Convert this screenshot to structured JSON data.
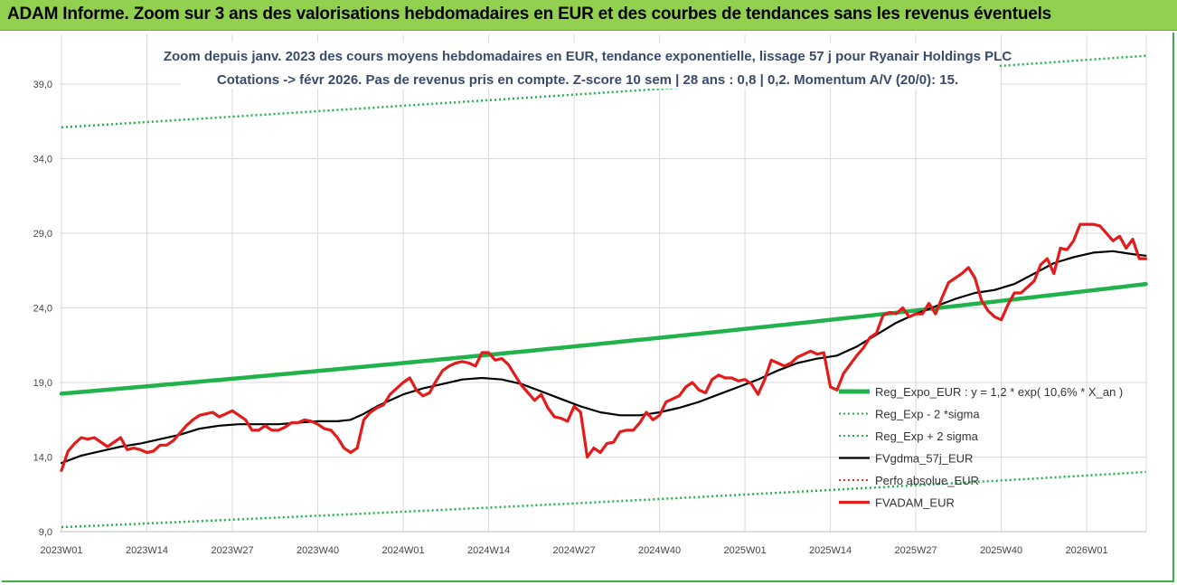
{
  "banner": {
    "title": "ADAM Informe. Zoom sur 3 ans des valorisations hebdomadaires en EUR et des courbes de tendances sans les revenus éventuels",
    "background": "#92d050"
  },
  "chart_data": {
    "type": "line",
    "title_line1": "Zoom depuis janv. 2023 des cours moyens hebdomadaires en EUR, tendance exponentielle, lissage 57 j pour Ryanair Holdings PLC",
    "title_line2": "Cotations -> févr 2026. Pas de revenus pris en compte. Z-score 10 sem | 28 ans : 0,8 | 0,2. Momentum A/V (20/0): 15.",
    "ylim": [
      9,
      40
    ],
    "y_ticks": [
      "9,0",
      "14,0",
      "19,0",
      "24,0",
      "29,0",
      "34,0",
      "39,0"
    ],
    "y_tick_values": [
      9,
      14,
      19,
      24,
      29,
      34,
      39
    ],
    "x_ticks": [
      "2023W01",
      "2023W14",
      "2023W27",
      "2023W40",
      "2024W01",
      "2024W14",
      "2024W27",
      "2024W40",
      "2025W01",
      "2025W14",
      "2025W27",
      "2025W40",
      "2026W01"
    ],
    "x_tick_index": [
      0,
      13,
      26,
      39,
      52,
      65,
      78,
      91,
      104,
      117,
      130,
      143,
      156
    ],
    "n_weeks": 165,
    "grid": true,
    "legend_position": "right",
    "series": [
      {
        "name": "Reg_Expo_EUR : y = 1,2 * exp( 10,6% *  X_an )",
        "color": "#22b24c",
        "style": "thick",
        "start": 18.25,
        "end": 25.6,
        "n": 165
      },
      {
        "name": "Reg_Exp - 2 *sigma",
        "color": "#22b24c",
        "style": "dotted",
        "start": 9.3,
        "end": 13.0,
        "n": 165
      },
      {
        "name": "Reg_Exp + 2 sigma",
        "color": "#22b24c",
        "style": "dotted",
        "start": 36.1,
        "end": 40.9,
        "n": 165
      },
      {
        "name": "FVgdma_57j_EUR",
        "color": "#000000",
        "style": "solid",
        "points": [
          [
            0,
            13.6
          ],
          [
            3,
            14.1
          ],
          [
            6,
            14.4
          ],
          [
            9,
            14.7
          ],
          [
            12,
            14.9
          ],
          [
            15,
            15.2
          ],
          [
            18,
            15.5
          ],
          [
            21,
            15.9
          ],
          [
            24,
            16.1
          ],
          [
            27,
            16.2
          ],
          [
            30,
            16.2
          ],
          [
            33,
            16.2
          ],
          [
            36,
            16.3
          ],
          [
            39,
            16.4
          ],
          [
            42,
            16.4
          ],
          [
            44,
            16.5
          ],
          [
            46,
            16.9
          ],
          [
            48,
            17.4
          ],
          [
            50,
            17.8
          ],
          [
            52,
            18.2
          ],
          [
            55,
            18.6
          ],
          [
            58,
            18.9
          ],
          [
            61,
            19.2
          ],
          [
            64,
            19.3
          ],
          [
            67,
            19.2
          ],
          [
            70,
            18.9
          ],
          [
            73,
            18.4
          ],
          [
            76,
            17.9
          ],
          [
            79,
            17.4
          ],
          [
            82,
            17.0
          ],
          [
            85,
            16.8
          ],
          [
            88,
            16.8
          ],
          [
            91,
            17.0
          ],
          [
            94,
            17.3
          ],
          [
            97,
            17.7
          ],
          [
            100,
            18.2
          ],
          [
            103,
            18.7
          ],
          [
            106,
            19.2
          ],
          [
            109,
            19.8
          ],
          [
            112,
            20.3
          ],
          [
            115,
            20.6
          ],
          [
            118,
            20.8
          ],
          [
            121,
            21.4
          ],
          [
            124,
            22.2
          ],
          [
            127,
            23.0
          ],
          [
            130,
            23.6
          ],
          [
            133,
            24.1
          ],
          [
            136,
            24.6
          ],
          [
            139,
            25.0
          ],
          [
            142,
            25.2
          ],
          [
            145,
            25.6
          ],
          [
            148,
            26.3
          ],
          [
            151,
            27.0
          ],
          [
            154,
            27.4
          ],
          [
            157,
            27.7
          ],
          [
            160,
            27.8
          ],
          [
            163,
            27.6
          ],
          [
            165,
            27.5
          ]
        ]
      },
      {
        "name": "Perfo absolue_EUR",
        "color": "#e03030",
        "style": "dotted-hidden"
      },
      {
        "name": "FVADAM_EUR",
        "color": "#e31b1b",
        "style": "thick",
        "points": [
          [
            0,
            13.1
          ],
          [
            1,
            14.4
          ],
          [
            2,
            14.9
          ],
          [
            3,
            15.3
          ],
          [
            4,
            15.2
          ],
          [
            5,
            15.3
          ],
          [
            6,
            15.0
          ],
          [
            7,
            14.7
          ],
          [
            8,
            15.0
          ],
          [
            9,
            15.3
          ],
          [
            10,
            14.5
          ],
          [
            11,
            14.6
          ],
          [
            12,
            14.5
          ],
          [
            13,
            14.3
          ],
          [
            14,
            14.4
          ],
          [
            15,
            14.8
          ],
          [
            16,
            14.8
          ],
          [
            17,
            15.1
          ],
          [
            18,
            15.6
          ],
          [
            19,
            16.1
          ],
          [
            20,
            16.5
          ],
          [
            21,
            16.8
          ],
          [
            22,
            16.9
          ],
          [
            23,
            17.0
          ],
          [
            24,
            16.7
          ],
          [
            25,
            16.9
          ],
          [
            26,
            17.1
          ],
          [
            27,
            16.8
          ],
          [
            28,
            16.5
          ],
          [
            29,
            15.8
          ],
          [
            30,
            15.8
          ],
          [
            31,
            16.1
          ],
          [
            32,
            15.8
          ],
          [
            33,
            15.8
          ],
          [
            34,
            16.0
          ],
          [
            35,
            16.3
          ],
          [
            36,
            16.3
          ],
          [
            37,
            16.5
          ],
          [
            38,
            16.4
          ],
          [
            39,
            16.2
          ],
          [
            40,
            15.9
          ],
          [
            41,
            15.8
          ],
          [
            42,
            15.3
          ],
          [
            43,
            14.6
          ],
          [
            44,
            14.3
          ],
          [
            45,
            14.6
          ],
          [
            46,
            16.5
          ],
          [
            47,
            17.0
          ],
          [
            48,
            17.3
          ],
          [
            49,
            17.5
          ],
          [
            50,
            18.2
          ],
          [
            51,
            18.6
          ],
          [
            52,
            19.0
          ],
          [
            53,
            19.3
          ],
          [
            54,
            18.5
          ],
          [
            55,
            18.1
          ],
          [
            56,
            18.3
          ],
          [
            57,
            19.1
          ],
          [
            58,
            19.8
          ],
          [
            59,
            20.1
          ],
          [
            60,
            20.3
          ],
          [
            61,
            20.4
          ],
          [
            62,
            20.3
          ],
          [
            63,
            20.1
          ],
          [
            64,
            21.0
          ],
          [
            65,
            21.0
          ],
          [
            66,
            20.5
          ],
          [
            67,
            20.6
          ],
          [
            68,
            20.2
          ],
          [
            69,
            19.5
          ],
          [
            70,
            18.8
          ],
          [
            71,
            18.3
          ],
          [
            72,
            17.8
          ],
          [
            73,
            18.2
          ],
          [
            74,
            17.3
          ],
          [
            75,
            16.7
          ],
          [
            76,
            16.6
          ],
          [
            77,
            16.4
          ],
          [
            78,
            17.4
          ],
          [
            79,
            17.0
          ],
          [
            80,
            14.0
          ],
          [
            81,
            14.6
          ],
          [
            82,
            14.3
          ],
          [
            83,
            14.9
          ],
          [
            84,
            15.0
          ],
          [
            85,
            15.7
          ],
          [
            86,
            15.8
          ],
          [
            87,
            15.8
          ],
          [
            88,
            16.3
          ],
          [
            89,
            17.0
          ],
          [
            90,
            16.5
          ],
          [
            91,
            16.8
          ],
          [
            92,
            17.7
          ],
          [
            93,
            17.9
          ],
          [
            94,
            18.1
          ],
          [
            95,
            18.7
          ],
          [
            96,
            19.0
          ],
          [
            97,
            18.5
          ],
          [
            98,
            18.3
          ],
          [
            99,
            19.2
          ],
          [
            100,
            19.5
          ],
          [
            101,
            19.3
          ],
          [
            102,
            19.3
          ],
          [
            103,
            19.1
          ],
          [
            104,
            19.2
          ],
          [
            105,
            18.9
          ],
          [
            106,
            18.2
          ],
          [
            107,
            19.2
          ],
          [
            108,
            20.5
          ],
          [
            109,
            20.3
          ],
          [
            110,
            20.1
          ],
          [
            111,
            20.3
          ],
          [
            112,
            20.7
          ],
          [
            113,
            20.9
          ],
          [
            114,
            21.1
          ],
          [
            115,
            20.9
          ],
          [
            116,
            21.0
          ],
          [
            117,
            18.7
          ],
          [
            118,
            18.5
          ],
          [
            119,
            19.6
          ],
          [
            120,
            20.2
          ],
          [
            121,
            20.8
          ],
          [
            122,
            21.3
          ],
          [
            123,
            22.0
          ],
          [
            124,
            22.3
          ],
          [
            125,
            23.5
          ],
          [
            126,
            23.7
          ],
          [
            127,
            23.6
          ],
          [
            128,
            24.0
          ],
          [
            129,
            23.4
          ],
          [
            130,
            23.6
          ],
          [
            131,
            23.6
          ],
          [
            132,
            24.3
          ],
          [
            133,
            23.6
          ],
          [
            134,
            24.7
          ],
          [
            135,
            25.7
          ],
          [
            136,
            26.0
          ],
          [
            137,
            26.3
          ],
          [
            138,
            26.7
          ],
          [
            139,
            26.0
          ],
          [
            140,
            24.5
          ],
          [
            141,
            23.8
          ],
          [
            142,
            23.4
          ],
          [
            143,
            23.2
          ],
          [
            144,
            24.2
          ],
          [
            145,
            25.0
          ],
          [
            146,
            25.0
          ],
          [
            147,
            25.4
          ],
          [
            148,
            25.8
          ],
          [
            149,
            26.9
          ],
          [
            150,
            27.3
          ],
          [
            151,
            26.3
          ],
          [
            152,
            28.0
          ],
          [
            153,
            27.9
          ],
          [
            154,
            28.5
          ],
          [
            155,
            29.6
          ],
          [
            156,
            29.6
          ],
          [
            157,
            29.6
          ],
          [
            158,
            29.5
          ],
          [
            159,
            29.0
          ],
          [
            160,
            28.5
          ],
          [
            161,
            28.8
          ],
          [
            162,
            28.0
          ],
          [
            163,
            28.6
          ],
          [
            164,
            27.3
          ],
          [
            165,
            27.3
          ]
        ]
      }
    ]
  }
}
